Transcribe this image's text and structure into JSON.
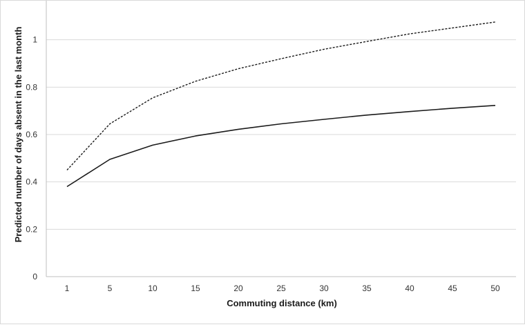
{
  "chart_data": {
    "type": "line",
    "title": "",
    "xlabel": "Commuting distance (km)",
    "ylabel": "Predicted number of days absent in the last month",
    "categories": [
      "1",
      "5",
      "10",
      "15",
      "20",
      "25",
      "30",
      "35",
      "40",
      "45",
      "50"
    ],
    "ylim": [
      0,
      1.2
    ],
    "yticks": [
      0,
      0.2,
      0.4,
      0.6,
      0.8,
      1
    ],
    "ytick_labels": [
      "0",
      "0.2",
      "0.4",
      "0.6",
      "0.8",
      "1"
    ],
    "grid": "horizontal",
    "legend": "none",
    "series": [
      {
        "style": "dashed",
        "color": "#1a1a1a",
        "values": [
          0.45,
          0.645,
          0.755,
          0.825,
          0.878,
          0.92,
          0.96,
          0.993,
          1.025,
          1.05,
          1.075
        ]
      },
      {
        "style": "solid",
        "color": "#1a1a1a",
        "values": [
          0.38,
          0.495,
          0.555,
          0.594,
          0.622,
          0.645,
          0.664,
          0.682,
          0.697,
          0.711,
          0.723
        ]
      }
    ]
  }
}
